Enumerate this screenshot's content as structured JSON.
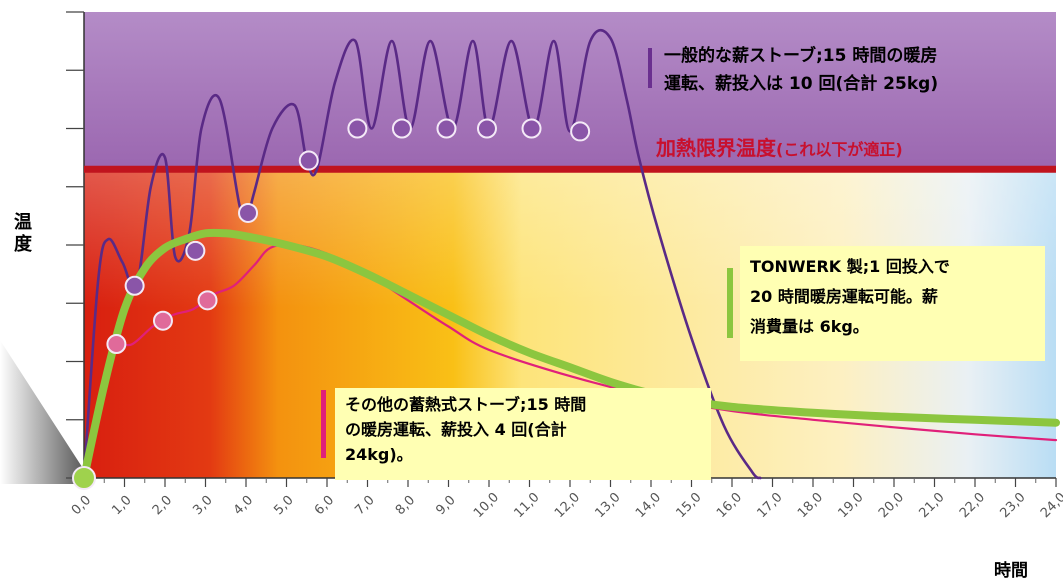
{
  "chart_data": {
    "type": "line",
    "title": "",
    "xlabel": "時間",
    "ylabel": "温度",
    "xlim": [
      0,
      24
    ],
    "ylim": [
      0,
      8
    ],
    "x_ticks": [
      "0,0",
      "1,0",
      "2,0",
      "3,0",
      "4,0",
      "5,0",
      "6,0",
      "7,0",
      "8,0",
      "9,0",
      "10,0",
      "11,0",
      "12,0",
      "13,0",
      "14,0",
      "15,0",
      "16,0",
      "17,0",
      "18,0",
      "19,0",
      "20,0",
      "21,0",
      "22,0",
      "23,0",
      "24,0"
    ],
    "limit_line": {
      "label": "加熱限界温度",
      "label_note": "(これ以下が適正)",
      "y": 5.3,
      "color": "#c0141e"
    },
    "series": [
      {
        "key": "general",
        "color": "#5a2a86",
        "x": [
          0,
          0.35,
          0.6,
          0.95,
          1.3,
          1.65,
          2.0,
          2.25,
          2.6,
          2.9,
          3.35,
          3.85,
          4.05,
          4.2,
          4.65,
          5.2,
          5.5,
          5.75,
          6.2,
          6.7,
          7.1,
          7.6,
          8.05,
          8.55,
          9.1,
          9.6,
          10.0,
          10.55,
          11.1,
          11.6,
          12.0,
          12.5,
          13.0,
          13.4,
          13.7,
          14.2,
          15.0,
          15.8,
          16.5,
          16.7
        ],
        "y": [
          0,
          3.4,
          4.1,
          3.7,
          3.3,
          5.0,
          5.5,
          3.8,
          4.2,
          6.0,
          6.5,
          4.65,
          4.55,
          4.9,
          6.0,
          6.4,
          5.45,
          5.3,
          6.8,
          7.5,
          6.0,
          7.5,
          6.0,
          7.5,
          6.0,
          7.5,
          6.0,
          7.5,
          6.0,
          7.5,
          5.95,
          7.5,
          7.55,
          6.5,
          5.5,
          4.2,
          2.4,
          0.9,
          0.1,
          0.0
        ],
        "markers": [
          [
            1.25,
            3.3
          ],
          [
            2.75,
            3.9
          ],
          [
            4.05,
            4.55
          ],
          [
            5.55,
            5.45
          ],
          [
            6.75,
            6.0
          ],
          [
            7.85,
            6.0
          ],
          [
            8.95,
            6.0
          ],
          [
            9.95,
            6.0
          ],
          [
            11.05,
            6.0
          ],
          [
            12.25,
            5.95
          ]
        ]
      },
      {
        "key": "other",
        "color": "#e0207a",
        "x": [
          0,
          0.35,
          0.7,
          1.2,
          1.7,
          2.2,
          2.7,
          3.2,
          3.7,
          4.2,
          4.6,
          5.2,
          6.0,
          7.0,
          8.0,
          9.0,
          10.0,
          12.0,
          14.0,
          16.0,
          18.0,
          20.0,
          22.0,
          24.0
        ],
        "y": [
          0,
          1.3,
          2.2,
          2.3,
          2.6,
          2.8,
          2.9,
          3.15,
          3.3,
          3.65,
          3.95,
          4.0,
          3.85,
          3.5,
          3.05,
          2.6,
          2.2,
          1.75,
          1.4,
          1.15,
          1.0,
          0.87,
          0.75,
          0.65
        ],
        "markers": [
          [
            0.8,
            2.3
          ],
          [
            1.95,
            2.7
          ],
          [
            3.05,
            3.05
          ]
        ]
      },
      {
        "key": "tonwerk",
        "color": "#8cc63f",
        "x": [
          0,
          0.5,
          1.0,
          1.5,
          2.0,
          2.5,
          3.0,
          3.5,
          4.0,
          5.0,
          6.0,
          7.0,
          8.0,
          9.0,
          10.0,
          11.0,
          12.0,
          13.0,
          14.0,
          15.0,
          16.0,
          18.0,
          20.0,
          22.0,
          24.0
        ],
        "y": [
          0,
          1.6,
          2.9,
          3.6,
          3.95,
          4.1,
          4.2,
          4.2,
          4.15,
          4.0,
          3.8,
          3.5,
          3.15,
          2.8,
          2.45,
          2.15,
          1.9,
          1.65,
          1.45,
          1.32,
          1.22,
          1.12,
          1.05,
          1.0,
          0.95
        ],
        "markers": [
          [
            0,
            0
          ]
        ]
      }
    ],
    "annotations": {
      "general": [
        "一般的な薪ストーブ;15 時間の暖房",
        "運転、薪投入は 10 回(合計 25kg)"
      ],
      "tonwerk": [
        "TONWERK 製;1 回投入で",
        "20 時間暖房運転可能。薪",
        "消費量は 6kg。"
      ],
      "other": [
        "その他の蓄熱式ストーブ;15 時間",
        "の暖房運転、薪投入 4 回(合計",
        "24kg)。"
      ]
    }
  }
}
